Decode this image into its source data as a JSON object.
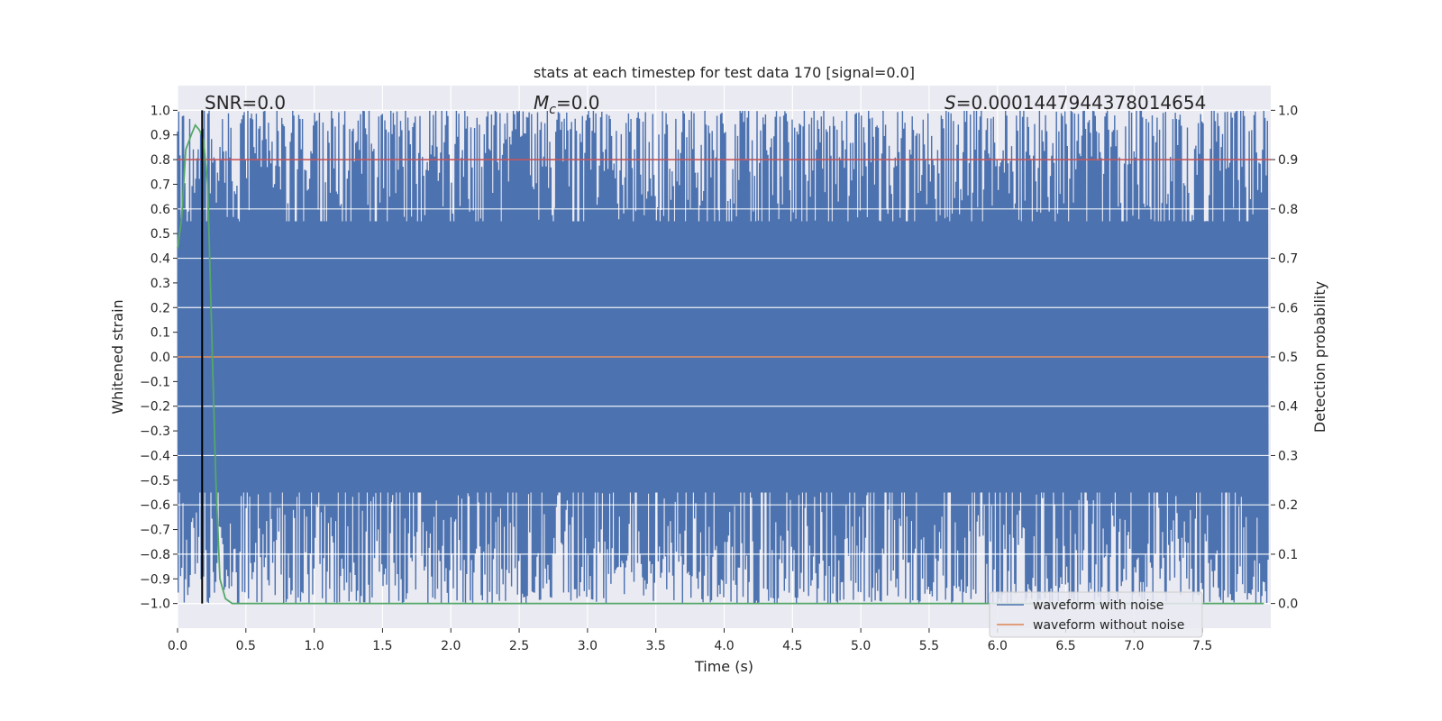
{
  "chart_data": {
    "type": "line",
    "title": "stats at each timestep for test data 170 [signal=0.0]",
    "xlabel": "Time (s)",
    "ylabel_left": "Whitened strain",
    "ylabel_right": "Detection probability",
    "xlim": [
      0.0,
      8.0
    ],
    "ylim_left": [
      -1.1,
      1.1
    ],
    "ylim_right": [
      -0.05,
      1.05
    ],
    "x_ticks": [
      "0.0",
      "0.5",
      "1.0",
      "1.5",
      "2.0",
      "2.5",
      "3.0",
      "3.5",
      "4.0",
      "4.5",
      "5.0",
      "5.5",
      "6.0",
      "6.5",
      "7.0",
      "7.5"
    ],
    "y_ticks_left": [
      "1.0",
      "0.9",
      "0.8",
      "0.7",
      "0.6",
      "0.5",
      "0.4",
      "0.3",
      "0.2",
      "0.1",
      "0.0",
      "−0.1",
      "−0.2",
      "−0.3",
      "−0.4",
      "−0.5",
      "−0.6",
      "−0.7",
      "−0.8",
      "−0.9",
      "−1.0"
    ],
    "y_ticks_right": [
      "1.0",
      "0.9",
      "0.8",
      "0.7",
      "0.6",
      "0.5",
      "0.4",
      "0.3",
      "0.2",
      "0.1",
      "0.0"
    ],
    "grid": true,
    "background": "#eaeaf2",
    "annotations": {
      "snr_prefix": "SNR=",
      "snr_value": "0.0",
      "mc_symbol": "M",
      "mc_subscript": "c",
      "mc_value": "=0.0",
      "s_symbol": "S",
      "s_value": "=0.0001447944378014654"
    },
    "series": [
      {
        "name": "waveform with noise",
        "color": "#4c72b0",
        "axis": "left",
        "description_range": [
          -1.0,
          1.0
        ]
      },
      {
        "name": "waveform without noise",
        "color": "#dd8452",
        "axis": "left",
        "values_constant": 0.0
      }
    ],
    "threshold_line": {
      "axis": "right",
      "value": 0.9,
      "color": "#c44e52"
    },
    "detection_probability": {
      "axis": "right",
      "color": "#55a868",
      "x": [
        0.0,
        0.03,
        0.06,
        0.1,
        0.13,
        0.16,
        0.19,
        0.22,
        0.25,
        0.28,
        0.31,
        0.35,
        0.4,
        1.0,
        2.0,
        3.0,
        4.0,
        5.0,
        6.0,
        7.0,
        7.95
      ],
      "y": [
        0.72,
        0.78,
        0.92,
        0.95,
        0.97,
        0.96,
        0.94,
        0.85,
        0.55,
        0.25,
        0.05,
        0.01,
        0.0,
        0.0,
        0.0,
        0.0,
        0.0,
        0.0,
        0.0,
        0.0,
        0.0
      ]
    },
    "marker_line": {
      "x": 0.18,
      "color": "#000000"
    },
    "legend": {
      "placement": "lower-right",
      "entries": [
        "waveform with noise",
        "waveform without noise"
      ]
    }
  }
}
